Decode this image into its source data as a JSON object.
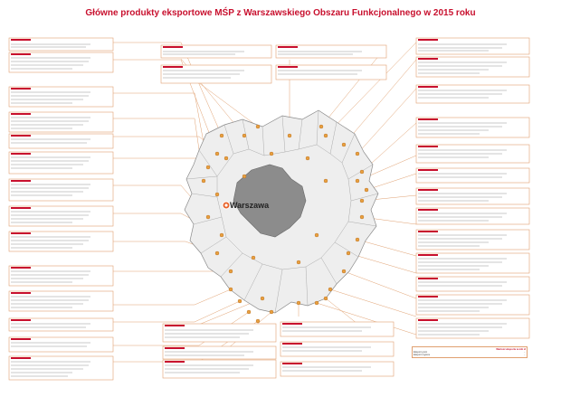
{
  "title": "Główne produkty eksportowe MŚP z Warszawskiego Obszaru Funkcjonalnego w 2015 roku",
  "capital_label": "Warszawa",
  "colors": {
    "title": "#c8102e",
    "region_fill": "#eeeeee",
    "region_stroke": "#8a8a8a",
    "capital_fill": "#8c8c8c",
    "box_border": "#e0a070",
    "leader_line": "#e0a070",
    "marker": "#e8a040",
    "capital_marker": "#e8632a"
  },
  "legend": {
    "header": "Wartość eksportu w mln zł",
    "rows": [
      {
        "label": "Eksport gmin",
        "value": "..."
      },
      {
        "label": "Eksport regionu",
        "value": "..."
      }
    ]
  }
}
